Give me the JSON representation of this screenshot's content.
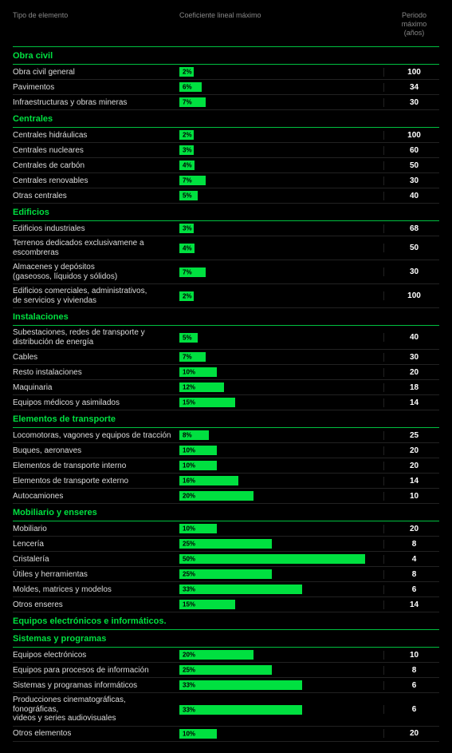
{
  "background_color": "#000000",
  "accent_color": "#00e040",
  "section_border_color": "#00c040",
  "row_border_color": "#222222",
  "text_color": "#ffffff",
  "muted_color": "#888888",
  "bar_scale_max": 55,
  "headers": {
    "element_type": "Tipo de elemento",
    "coefficient": "Coeficiente lineal máximo",
    "period": "Periodo máximo\n(años)"
  },
  "sections": [
    {
      "title": "Obra civil",
      "rows": [
        {
          "label": "Obra civil general",
          "pct": 2,
          "period": 100
        },
        {
          "label": "Pavimentos",
          "pct": 6,
          "period": 34
        },
        {
          "label": "Infraestructuras y obras mineras",
          "pct": 7,
          "period": 30
        }
      ]
    },
    {
      "title": "Centrales",
      "rows": [
        {
          "label": "Centrales hidráulicas",
          "pct": 2,
          "period": 100
        },
        {
          "label": "Centrales nucleares",
          "pct": 3,
          "period": 60
        },
        {
          "label": "Centrales de carbón",
          "pct": 4,
          "period": 50
        },
        {
          "label": "Centrales renovables",
          "pct": 7,
          "period": 30
        },
        {
          "label": "Otras centrales",
          "pct": 5,
          "period": 40
        }
      ]
    },
    {
      "title": "Edificios",
      "rows": [
        {
          "label": "Edificios industriales",
          "pct": 3,
          "period": 68
        },
        {
          "label": "Terrenos dedicados exclusivamene a escombreras",
          "pct": 4,
          "period": 50
        },
        {
          "label": "Almacenes y depósitos\n(gaseosos, líquidos y sólidos)",
          "pct": 7,
          "period": 30
        },
        {
          "label": "Edificios comerciales, administrativos,\nde servicios y viviendas",
          "pct": 2,
          "period": 100
        }
      ]
    },
    {
      "title": "Instalaciones",
      "rows": [
        {
          "label": "Subestaciones, redes de transporte y\ndistribución de energía",
          "pct": 5,
          "period": 40
        },
        {
          "label": "Cables",
          "pct": 7,
          "period": 30
        },
        {
          "label": "Resto instalaciones",
          "pct": 10,
          "period": 20
        },
        {
          "label": "Maquinaria",
          "pct": 12,
          "period": 18
        },
        {
          "label": "Equipos médicos y asimilados",
          "pct": 15,
          "period": 14
        }
      ]
    },
    {
      "title": "Elementos de transporte",
      "rows": [
        {
          "label": "Locomotoras, vagones y equipos de tracción",
          "pct": 8,
          "period": 25
        },
        {
          "label": "Buques, aeronaves",
          "pct": 10,
          "period": 20
        },
        {
          "label": "Elementos de transporte interno",
          "pct": 10,
          "period": 20
        },
        {
          "label": "Elementos de transporte externo",
          "pct": 16,
          "period": 14
        },
        {
          "label": "Autocamiones",
          "pct": 20,
          "period": 10
        }
      ]
    },
    {
      "title": "Mobiliario y enseres",
      "rows": [
        {
          "label": "Mobiliario",
          "pct": 10,
          "period": 20
        },
        {
          "label": "Lencería",
          "pct": 25,
          "period": 8
        },
        {
          "label": "Cristalería",
          "pct": 50,
          "period": 4
        },
        {
          "label": "Útiles y herramientas",
          "pct": 25,
          "period": 8
        },
        {
          "label": "Moldes, matrices y modelos",
          "pct": 33,
          "period": 6
        },
        {
          "label": "Otros enseres",
          "pct": 15,
          "period": 14
        }
      ]
    },
    {
      "title": "Equipos electrónicos e informáticos.\nSistemas y programas",
      "rows": [
        {
          "label": "Equipos electrónicos",
          "pct": 20,
          "period": 10
        },
        {
          "label": "Equipos para procesos de información",
          "pct": 25,
          "period": 8
        },
        {
          "label": "Sistemas y programas informáticos",
          "pct": 33,
          "period": 6
        },
        {
          "label": "Producciones cinematográficas, fonográficas,\nvideos y series audiovisuales",
          "pct": 33,
          "period": 6
        },
        {
          "label": "Otros elementos",
          "pct": 10,
          "period": 20
        }
      ]
    }
  ]
}
